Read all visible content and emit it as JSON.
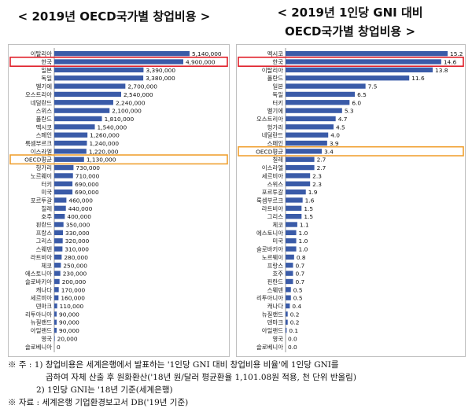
{
  "notes": {
    "line1": "※ 주 : 1) 창업비용은 세계은행에서 발표하는 '1인당 GNI 대비 창업비용 비율'에 1인당 GNI를",
    "line2": "곱하여 자체 산출 후 원화환산('18년 원/달러 평균환율 1,101.08원 적용, 천 단위 반올림)",
    "line3": "2) 1인당 GNI는 '18년 기준(세계은행)",
    "line4": "※ 자료 : 세계은행 기업환경보고서 DB('19년 기준)"
  },
  "colors": {
    "bar": "#3a5ba8",
    "highlight_korea": "#e0202a",
    "highlight_oecd": "#f0a030"
  },
  "chart_data": [
    {
      "type": "bar",
      "orientation": "horizontal",
      "title": "< 2019년 OECD국가별 창업비용 >",
      "highlight": {
        "korea": "한국",
        "oecd": "OECD평균"
      },
      "categories": [
        "이탈리아",
        "한국",
        "일본",
        "독일",
        "벨기에",
        "오스트리아",
        "네덜란드",
        "스위스",
        "폴란드",
        "멕시코",
        "스페인",
        "룩셈부르크",
        "이스라엘",
        "OECD평균",
        "헝가리",
        "노르웨이",
        "터키",
        "미국",
        "포르투갈",
        "칠레",
        "호주",
        "핀란드",
        "프랑스",
        "그리스",
        "스웨덴",
        "라트비아",
        "체코",
        "에스토니아",
        "슬로바키아",
        "캐나다",
        "세르비아",
        "덴마크",
        "리투아니아",
        "뉴질랜드",
        "아일랜드",
        "영국",
        "슬로베니아"
      ],
      "values": [
        5140000,
        4900000,
        3390000,
        3380000,
        2700000,
        2540000,
        2240000,
        2100000,
        1810000,
        1540000,
        1260000,
        1240000,
        1220000,
        1130000,
        730000,
        710000,
        690000,
        690000,
        460000,
        440000,
        400000,
        350000,
        330000,
        320000,
        310000,
        280000,
        250000,
        230000,
        200000,
        170000,
        160000,
        110000,
        90000,
        90000,
        90000,
        20000,
        0
      ],
      "value_labels": [
        "5,140,000",
        "4,900,000",
        "3,390,000",
        "3,380,000",
        "2,700,000",
        "2,540,000",
        "2,240,000",
        "2,100,000",
        "1,810,000",
        "1,540,000",
        "1,260,000",
        "1,240,000",
        "1,220,000",
        "1,130,000",
        "730,000",
        "710,000",
        "690,000",
        "690,000",
        "460,000",
        "440,000",
        "400,000",
        "350,000",
        "330,000",
        "320,000",
        "310,000",
        "280,000",
        "250,000",
        "230,000",
        "200,000",
        "170,000",
        "160,000",
        "110,000",
        "90,000",
        "90,000",
        "90,000",
        "20,000",
        "0"
      ]
    },
    {
      "type": "bar",
      "orientation": "horizontal",
      "title": "< 2019년 1인당 GNI 대비",
      "title2": "OECD국가별 창업비용 >",
      "highlight": {
        "korea": "한국",
        "oecd": "OECD평균"
      },
      "categories": [
        "멕시코",
        "한국",
        "이탈리아",
        "폴란드",
        "일본",
        "독일",
        "터키",
        "벨기에",
        "오스트리아",
        "헝가리",
        "네덜란드",
        "스페인",
        "OECD평균",
        "칠레",
        "이스라엘",
        "세르비아",
        "스위스",
        "포르투갈",
        "룩셈부르크",
        "라트비아",
        "그리스",
        "체코",
        "에스토니아",
        "미국",
        "슬로바키아",
        "노르웨이",
        "프랑스",
        "호주",
        "핀란드",
        "스웨덴",
        "리투아니아",
        "캐나다",
        "뉴질랜드",
        "덴마크",
        "아일랜드",
        "영국",
        "슬로베니아"
      ],
      "values": [
        15.2,
        14.6,
        13.8,
        11.6,
        7.5,
        6.5,
        6.0,
        5.3,
        4.7,
        4.5,
        4.0,
        3.9,
        3.4,
        2.7,
        2.7,
        2.3,
        2.3,
        1.9,
        1.6,
        1.5,
        1.5,
        1.1,
        1.0,
        1.0,
        1.0,
        0.8,
        0.7,
        0.7,
        0.7,
        0.5,
        0.5,
        0.4,
        0.2,
        0.2,
        0.1,
        0.0,
        0.0
      ],
      "value_labels": [
        "15.2",
        "14.6",
        "13.8",
        "11.6",
        "7.5",
        "6.5",
        "6.0",
        "5.3",
        "4.7",
        "4.5",
        "4.0",
        "3.9",
        "3.4",
        "2.7",
        "2.7",
        "2.3",
        "2.3",
        "1.9",
        "1.6",
        "1.5",
        "1.5",
        "1.1",
        "1.0",
        "1.0",
        "1.0",
        "0.8",
        "0.7",
        "0.7",
        "0.7",
        "0.5",
        "0.5",
        "0.4",
        "0.2",
        "0.2",
        "0.1",
        "0.0",
        "0.0"
      ]
    }
  ]
}
